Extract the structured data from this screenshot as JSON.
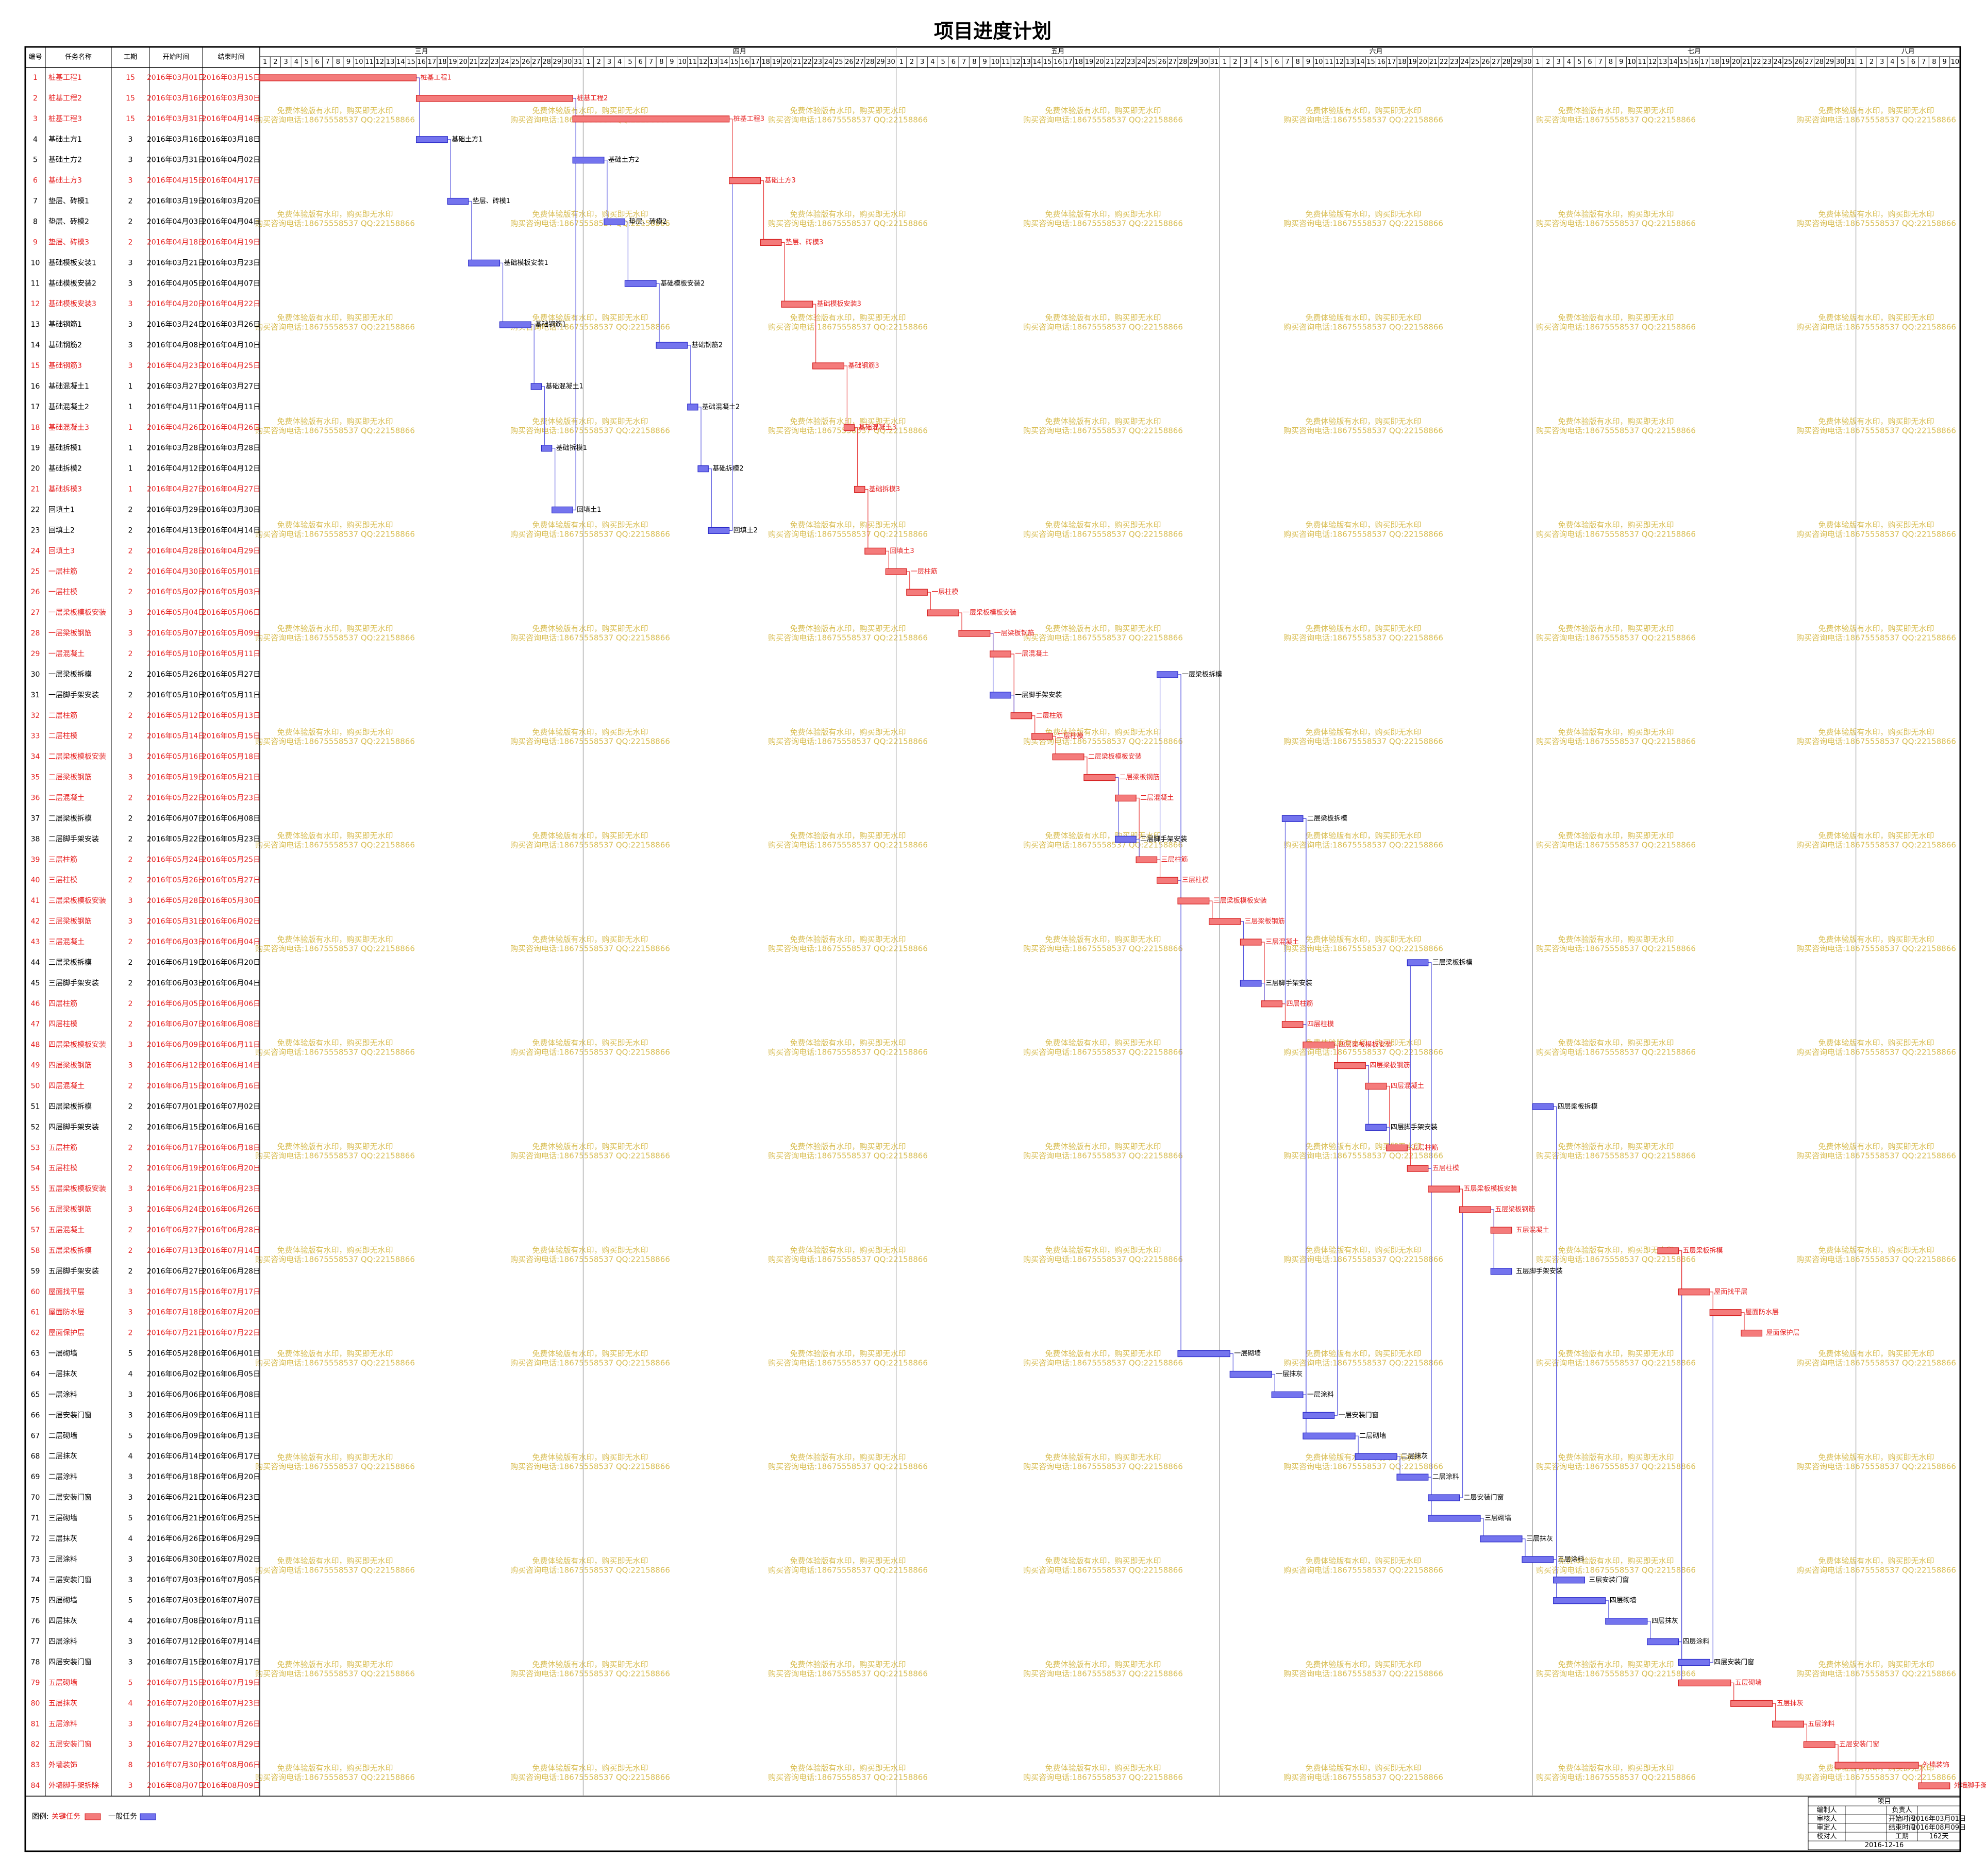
{
  "chart_data": {
    "type": "gantt",
    "title": "项目进度计划",
    "columns": [
      "编号",
      "任务名称",
      "工期",
      "开始时间",
      "结束时间"
    ],
    "xlim": [
      "2016-03-01",
      "2016-08-11"
    ],
    "months": [
      {
        "name": "三月",
        "days": [
          1,
          2,
          3,
          4,
          5,
          6,
          7,
          8,
          9,
          10,
          11,
          12,
          13,
          14,
          15,
          16,
          17,
          18,
          19,
          20,
          21,
          22,
          23,
          24,
          25,
          26,
          27,
          28,
          29,
          30,
          31
        ]
      },
      {
        "name": "四月",
        "days": [
          1,
          2,
          3,
          4,
          5,
          6,
          7,
          8,
          9,
          10,
          11,
          12,
          13,
          14,
          15,
          16,
          17,
          18,
          19,
          20,
          21,
          22,
          23,
          24,
          25,
          26,
          27,
          28,
          29,
          30
        ]
      },
      {
        "name": "五月",
        "days": [
          1,
          2,
          3,
          4,
          5,
          6,
          7,
          8,
          9,
          10,
          11,
          12,
          13,
          14,
          15,
          16,
          17,
          18,
          19,
          20,
          21,
          22,
          23,
          24,
          25,
          26,
          27,
          28,
          29,
          30,
          31
        ]
      },
      {
        "name": "六月",
        "days": [
          1,
          2,
          3,
          4,
          5,
          6,
          7,
          8,
          9,
          10,
          11,
          12,
          13,
          14,
          15,
          16,
          17,
          18,
          19,
          20,
          21,
          22,
          23,
          24,
          25,
          26,
          27,
          28,
          29,
          30
        ]
      },
      {
        "name": "七月",
        "days": [
          1,
          2,
          3,
          4,
          5,
          6,
          7,
          8,
          9,
          10,
          11,
          12,
          13,
          14,
          15,
          16,
          17,
          18,
          19,
          20,
          21,
          22,
          23,
          24,
          25,
          26,
          27,
          28,
          29,
          30,
          31
        ]
      },
      {
        "name": "八月",
        "days": [
          1,
          2,
          3,
          4,
          5,
          6,
          7,
          8,
          9,
          10
        ]
      }
    ],
    "critical_color": "#f47b7b",
    "normal_color": "#7474ee",
    "rows": [
      [
        1,
        "桩基工程1",
        15,
        "2016年03月01日",
        "2016年03月15日",
        true
      ],
      [
        2,
        "桩基工程2",
        15,
        "2016年03月16日",
        "2016年03月30日",
        true
      ],
      [
        3,
        "桩基工程3",
        15,
        "2016年03月31日",
        "2016年04月14日",
        true
      ],
      [
        4,
        "基础土方1",
        3,
        "2016年03月16日",
        "2016年03月18日",
        false
      ],
      [
        5,
        "基础土方2",
        3,
        "2016年03月31日",
        "2016年04月02日",
        false
      ],
      [
        6,
        "基础土方3",
        3,
        "2016年04月15日",
        "2016年04月17日",
        true
      ],
      [
        7,
        "垫层、砖模1",
        2,
        "2016年03月19日",
        "2016年03月20日",
        false
      ],
      [
        8,
        "垫层、砖模2",
        2,
        "2016年04月03日",
        "2016年04月04日",
        false
      ],
      [
        9,
        "垫层、砖模3",
        2,
        "2016年04月18日",
        "2016年04月19日",
        true
      ],
      [
        10,
        "基础模板安装1",
        3,
        "2016年03月21日",
        "2016年03月23日",
        false
      ],
      [
        11,
        "基础模板安装2",
        3,
        "2016年04月05日",
        "2016年04月07日",
        false
      ],
      [
        12,
        "基础模板安装3",
        3,
        "2016年04月20日",
        "2016年04月22日",
        true
      ],
      [
        13,
        "基础钢筋1",
        3,
        "2016年03月24日",
        "2016年03月26日",
        false
      ],
      [
        14,
        "基础钢筋2",
        3,
        "2016年04月08日",
        "2016年04月10日",
        false
      ],
      [
        15,
        "基础钢筋3",
        3,
        "2016年04月23日",
        "2016年04月25日",
        true
      ],
      [
        16,
        "基础混凝土1",
        1,
        "2016年03月27日",
        "2016年03月27日",
        false
      ],
      [
        17,
        "基础混凝土2",
        1,
        "2016年04月11日",
        "2016年04月11日",
        false
      ],
      [
        18,
        "基础混凝土3",
        1,
        "2016年04月26日",
        "2016年04月26日",
        true
      ],
      [
        19,
        "基础拆模1",
        1,
        "2016年03月28日",
        "2016年03月28日",
        false
      ],
      [
        20,
        "基础拆模2",
        1,
        "2016年04月12日",
        "2016年04月12日",
        false
      ],
      [
        21,
        "基础拆模3",
        1,
        "2016年04月27日",
        "2016年04月27日",
        true
      ],
      [
        22,
        "回填土1",
        2,
        "2016年03月29日",
        "2016年03月30日",
        false
      ],
      [
        23,
        "回填土2",
        2,
        "2016年04月13日",
        "2016年04月14日",
        false
      ],
      [
        24,
        "回填土3",
        2,
        "2016年04月28日",
        "2016年04月29日",
        true
      ],
      [
        25,
        "一层柱筋",
        2,
        "2016年04月30日",
        "2016年05月01日",
        true
      ],
      [
        26,
        "一层柱模",
        2,
        "2016年05月02日",
        "2016年05月03日",
        true
      ],
      [
        27,
        "一层梁板模板安装",
        3,
        "2016年05月04日",
        "2016年05月06日",
        true
      ],
      [
        28,
        "一层梁板钢筋",
        3,
        "2016年05月07日",
        "2016年05月09日",
        true
      ],
      [
        29,
        "一层混凝土",
        2,
        "2016年05月10日",
        "2016年05月11日",
        true
      ],
      [
        30,
        "一层梁板拆模",
        2,
        "2016年05月26日",
        "2016年05月27日",
        false
      ],
      [
        31,
        "一层脚手架安装",
        2,
        "2016年05月10日",
        "2016年05月11日",
        false
      ],
      [
        32,
        "二层柱筋",
        2,
        "2016年05月12日",
        "2016年05月13日",
        true
      ],
      [
        33,
        "二层柱模",
        2,
        "2016年05月14日",
        "2016年05月15日",
        true
      ],
      [
        34,
        "二层梁板模板安装",
        3,
        "2016年05月16日",
        "2016年05月18日",
        true
      ],
      [
        35,
        "二层梁板钢筋",
        3,
        "2016年05月19日",
        "2016年05月21日",
        true
      ],
      [
        36,
        "二层混凝土",
        2,
        "2016年05月22日",
        "2016年05月23日",
        true
      ],
      [
        37,
        "二层梁板拆模",
        2,
        "2016年06月07日",
        "2016年06月08日",
        false
      ],
      [
        38,
        "二层脚手架安装",
        2,
        "2016年05月22日",
        "2016年05月23日",
        false
      ],
      [
        39,
        "三层柱筋",
        2,
        "2016年05月24日",
        "2016年05月25日",
        true
      ],
      [
        40,
        "三层柱模",
        2,
        "2016年05月26日",
        "2016年05月27日",
        true
      ],
      [
        41,
        "三层梁板模板安装",
        3,
        "2016年05月28日",
        "2016年05月30日",
        true
      ],
      [
        42,
        "三层梁板钢筋",
        3,
        "2016年05月31日",
        "2016年06月02日",
        true
      ],
      [
        43,
        "三层混凝土",
        2,
        "2016年06月03日",
        "2016年06月04日",
        true
      ],
      [
        44,
        "三层梁板拆模",
        2,
        "2016年06月19日",
        "2016年06月20日",
        false
      ],
      [
        45,
        "三层脚手架安装",
        2,
        "2016年06月03日",
        "2016年06月04日",
        false
      ],
      [
        46,
        "四层柱筋",
        2,
        "2016年06月05日",
        "2016年06月06日",
        true
      ],
      [
        47,
        "四层柱模",
        2,
        "2016年06月07日",
        "2016年06月08日",
        true
      ],
      [
        48,
        "四层梁板模板安装",
        3,
        "2016年06月09日",
        "2016年06月11日",
        true
      ],
      [
        49,
        "四层梁板钢筋",
        3,
        "2016年06月12日",
        "2016年06月14日",
        true
      ],
      [
        50,
        "四层混凝土",
        2,
        "2016年06月15日",
        "2016年06月16日",
        true
      ],
      [
        51,
        "四层梁板拆模",
        2,
        "2016年07月01日",
        "2016年07月02日",
        false
      ],
      [
        52,
        "四层脚手架安装",
        2,
        "2016年06月15日",
        "2016年06月16日",
        false
      ],
      [
        53,
        "五层柱筋",
        2,
        "2016年06月17日",
        "2016年06月18日",
        true
      ],
      [
        54,
        "五层柱模",
        2,
        "2016年06月19日",
        "2016年06月20日",
        true
      ],
      [
        55,
        "五层梁板模板安装",
        3,
        "2016年06月21日",
        "2016年06月23日",
        true
      ],
      [
        56,
        "五层梁板钢筋",
        3,
        "2016年06月24日",
        "2016年06月26日",
        true
      ],
      [
        57,
        "五层混凝土",
        2,
        "2016年06月27日",
        "2016年06月28日",
        true
      ],
      [
        58,
        "五层梁板拆模",
        2,
        "2016年07月13日",
        "2016年07月14日",
        true
      ],
      [
        59,
        "五层脚手架安装",
        2,
        "2016年06月27日",
        "2016年06月28日",
        false
      ],
      [
        60,
        "屋面找平层",
        3,
        "2016年07月15日",
        "2016年07月17日",
        true
      ],
      [
        61,
        "屋面防水层",
        3,
        "2016年07月18日",
        "2016年07月20日",
        true
      ],
      [
        62,
        "屋面保护层",
        2,
        "2016年07月21日",
        "2016年07月22日",
        true
      ],
      [
        63,
        "一层砌墙",
        5,
        "2016年05月28日",
        "2016年06月01日",
        false
      ],
      [
        64,
        "一层抹灰",
        4,
        "2016年06月02日",
        "2016年06月05日",
        false
      ],
      [
        65,
        "一层涂料",
        3,
        "2016年06月06日",
        "2016年06月08日",
        false
      ],
      [
        66,
        "一层安装门窗",
        3,
        "2016年06月09日",
        "2016年06月11日",
        false
      ],
      [
        67,
        "二层砌墙",
        5,
        "2016年06月09日",
        "2016年06月13日",
        false
      ],
      [
        68,
        "二层抹灰",
        4,
        "2016年06月14日",
        "2016年06月17日",
        false
      ],
      [
        69,
        "二层涂料",
        3,
        "2016年06月18日",
        "2016年06月20日",
        false
      ],
      [
        70,
        "二层安装门窗",
        3,
        "2016年06月21日",
        "2016年06月23日",
        false
      ],
      [
        71,
        "三层砌墙",
        5,
        "2016年06月21日",
        "2016年06月25日",
        false
      ],
      [
        72,
        "三层抹灰",
        4,
        "2016年06月26日",
        "2016年06月29日",
        false
      ],
      [
        73,
        "三层涂料",
        3,
        "2016年06月30日",
        "2016年07月02日",
        false
      ],
      [
        74,
        "三层安装门窗",
        3,
        "2016年07月03日",
        "2016年07月05日",
        false
      ],
      [
        75,
        "四层砌墙",
        5,
        "2016年07月03日",
        "2016年07月07日",
        false
      ],
      [
        76,
        "四层抹灰",
        4,
        "2016年07月08日",
        "2016年07月11日",
        false
      ],
      [
        77,
        "四层涂料",
        3,
        "2016年07月12日",
        "2016年07月14日",
        false
      ],
      [
        78,
        "四层安装门窗",
        3,
        "2016年07月15日",
        "2016年07月17日",
        false
      ],
      [
        79,
        "五层砌墙",
        5,
        "2016年07月15日",
        "2016年07月19日",
        true
      ],
      [
        80,
        "五层抹灰",
        4,
        "2016年07月20日",
        "2016年07月23日",
        true
      ],
      [
        81,
        "五层涂料",
        3,
        "2016年07月24日",
        "2016年07月26日",
        true
      ],
      [
        82,
        "五层安装门窗",
        3,
        "2016年07月27日",
        "2016年07月29日",
        true
      ],
      [
        83,
        "外墙装饰",
        8,
        "2016年07月30日",
        "2016年08月06日",
        true
      ],
      [
        84,
        "外墙脚手架拆除",
        3,
        "2016年08月07日",
        "2016年08月09日",
        true
      ]
    ],
    "legend": {
      "title": "图例:",
      "items": [
        "关键任务",
        "一般任务"
      ]
    },
    "watermark": [
      "免费体验版有水印，购买即无水印",
      "购买咨询电话:18675558537 QQ:22158866"
    ],
    "info": {
      "title": "项目",
      "rows": [
        {
          "left": "编制人",
          "key": "负责人"
        },
        {
          "left": "审核人",
          "key": "开始时间",
          "value": "2016年03月01日"
        },
        {
          "left": "审定人",
          "key": "结束时间",
          "value": "2016年08月09日"
        },
        {
          "left": "校对人",
          "key": "工期",
          "value": "162天"
        }
      ],
      "date": "2016-12-16"
    }
  }
}
